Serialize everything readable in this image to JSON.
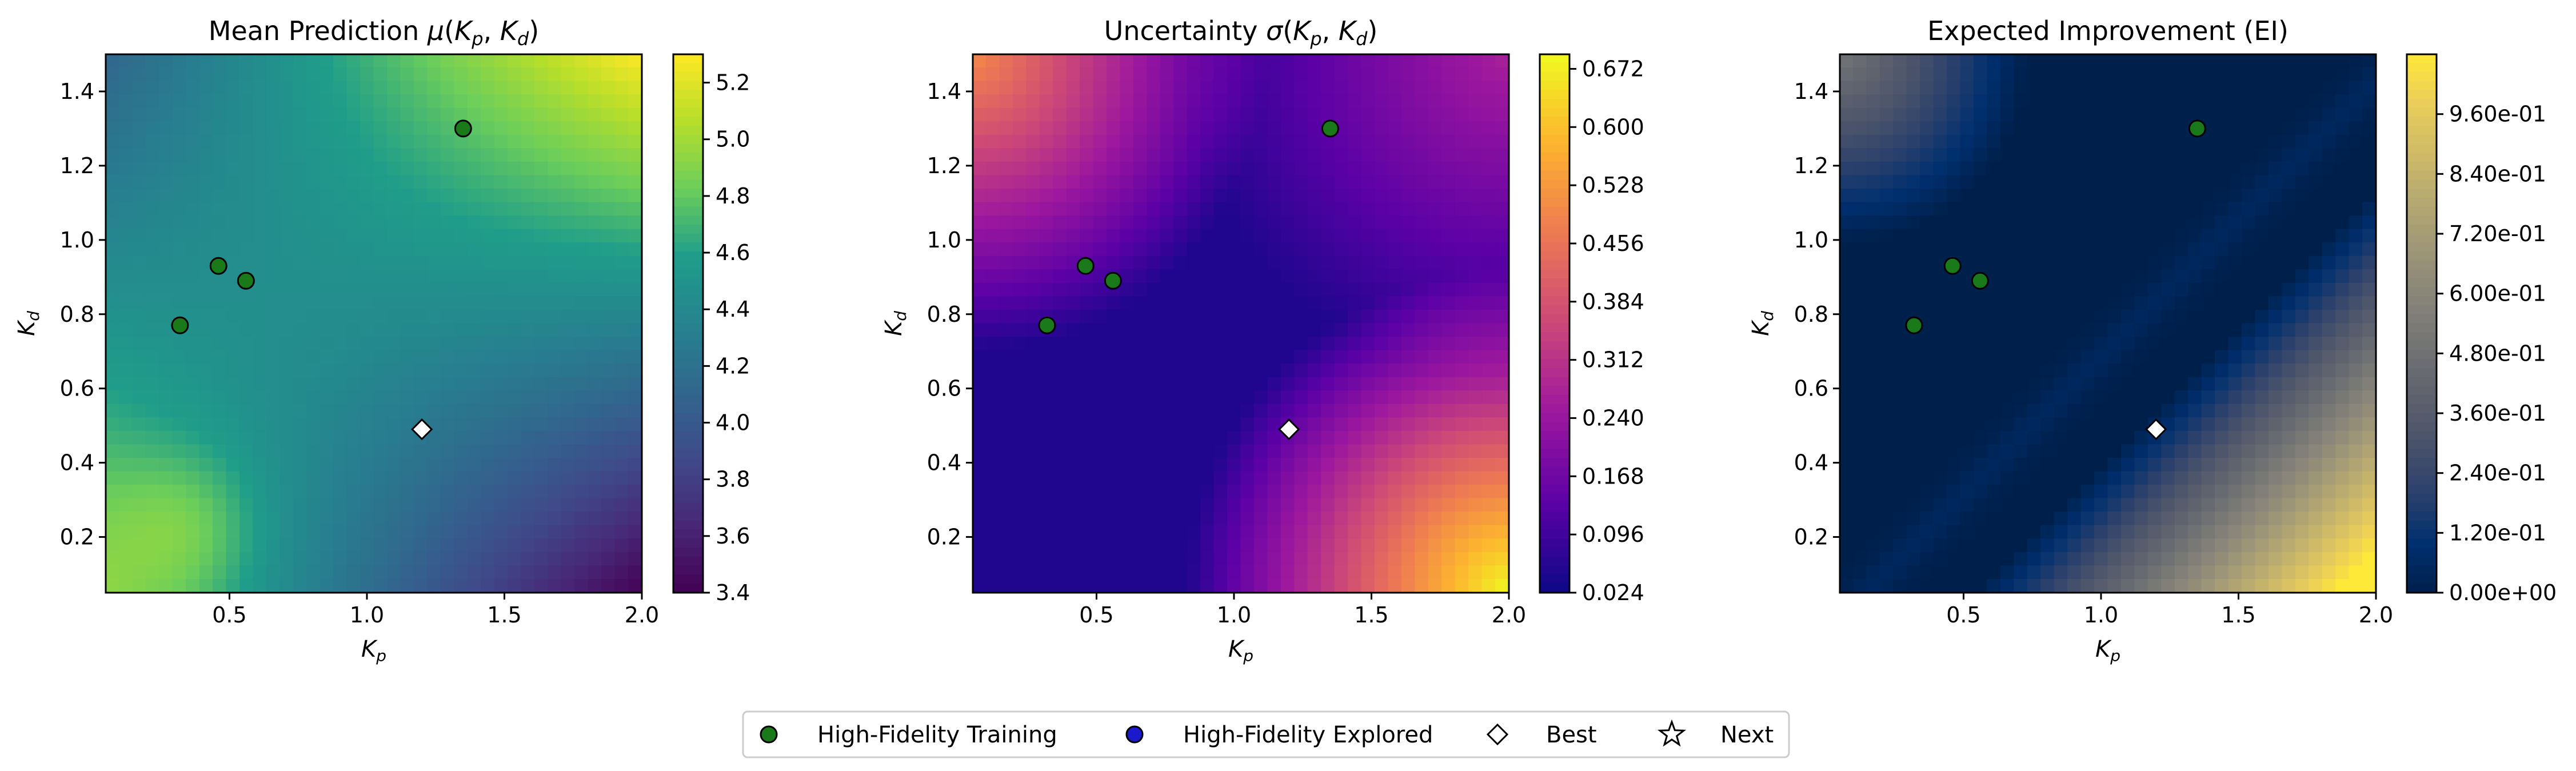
{
  "chart_data": [
    {
      "type": "heatmap",
      "title": "Mean Prediction μ(Kp, Kd)",
      "title_parts": [
        "Mean Prediction ",
        "μ",
        "(",
        "K",
        "p",
        ", ",
        "K",
        "d",
        ")"
      ],
      "xlabel": "Kp",
      "ylabel": "Kd",
      "xlim": [
        0.05,
        2.0
      ],
      "ylim": [
        0.05,
        1.5
      ],
      "x_ticks": [
        "0.5",
        "1.0",
        "1.5",
        "2.0"
      ],
      "x_tick_values": [
        0.5,
        1.0,
        1.5,
        2.0
      ],
      "y_ticks": [
        "0.2",
        "0.4",
        "0.6",
        "0.8",
        "1.0",
        "1.2",
        "1.4"
      ],
      "y_tick_values": [
        0.2,
        0.4,
        0.6,
        0.8,
        1.0,
        1.2,
        1.4
      ],
      "colormap": "viridis",
      "colorbar_range": [
        3.4,
        5.3
      ],
      "colorbar_ticks": [
        "3.4",
        "3.6",
        "3.8",
        "4.0",
        "4.2",
        "4.4",
        "4.6",
        "4.8",
        "5.0",
        "5.2"
      ],
      "colorbar_tick_values": [
        3.4,
        3.6,
        3.8,
        4.0,
        4.2,
        4.4,
        4.6,
        4.8,
        5.0,
        5.2
      ],
      "corner_values": {
        "top_left": 4.1,
        "top_right": 5.3,
        "bottom_left": 4.9,
        "bottom_right": 3.4
      }
    },
    {
      "type": "heatmap",
      "title": "Uncertainty σ(Kp, Kd)",
      "title_parts": [
        "Uncertainty ",
        "σ",
        "(",
        "K",
        "p",
        ", ",
        "K",
        "d",
        ")"
      ],
      "xlabel": "Kp",
      "ylabel": "Kd",
      "xlim": [
        0.05,
        2.0
      ],
      "ylim": [
        0.05,
        1.5
      ],
      "x_ticks": [
        "0.5",
        "1.0",
        "1.5",
        "2.0"
      ],
      "x_tick_values": [
        0.5,
        1.0,
        1.5,
        2.0
      ],
      "y_ticks": [
        "0.2",
        "0.4",
        "0.6",
        "0.8",
        "1.0",
        "1.2",
        "1.4"
      ],
      "y_tick_values": [
        0.2,
        0.4,
        0.6,
        0.8,
        1.0,
        1.2,
        1.4
      ],
      "colormap": "plasma",
      "colorbar_range": [
        0.024,
        0.69
      ],
      "colorbar_ticks": [
        "0.024",
        "0.096",
        "0.168",
        "0.240",
        "0.312",
        "0.384",
        "0.456",
        "0.528",
        "0.600",
        "0.672"
      ],
      "colorbar_tick_values": [
        0.024,
        0.096,
        0.168,
        0.24,
        0.312,
        0.384,
        0.456,
        0.528,
        0.6,
        0.672
      ],
      "corner_values": {
        "top_left": 0.5,
        "top_right": 0.28,
        "bottom_left": 0.05,
        "bottom_right": 0.69
      }
    },
    {
      "type": "heatmap",
      "title": "Expected Improvement (EI)",
      "title_parts": [
        "Expected Improvement (EI)"
      ],
      "xlabel": "Kp",
      "ylabel": "Kd",
      "xlim": [
        0.05,
        2.0
      ],
      "ylim": [
        0.05,
        1.5
      ],
      "x_ticks": [
        "0.5",
        "1.0",
        "1.5",
        "2.0"
      ],
      "x_tick_values": [
        0.5,
        1.0,
        1.5,
        2.0
      ],
      "y_ticks": [
        "0.2",
        "0.4",
        "0.6",
        "0.8",
        "1.0",
        "1.2",
        "1.4"
      ],
      "y_tick_values": [
        0.2,
        0.4,
        0.6,
        0.8,
        1.0,
        1.2,
        1.4
      ],
      "colormap": "cividis",
      "colorbar_range": [
        0.0,
        1.08
      ],
      "colorbar_ticks": [
        "0.00e+00",
        "1.20e-01",
        "2.40e-01",
        "3.60e-01",
        "4.80e-01",
        "6.00e-01",
        "7.20e-01",
        "8.40e-01",
        "9.60e-01"
      ],
      "colorbar_tick_values": [
        0.0,
        0.12,
        0.24,
        0.36,
        0.48,
        0.6,
        0.72,
        0.84,
        0.96
      ],
      "corner_values": {
        "top_left": 0.5,
        "top_right": 0.0,
        "bottom_left": 0.0,
        "bottom_right": 1.08
      }
    }
  ],
  "points": {
    "high_fidelity_training": [
      {
        "x": 0.32,
        "y": 0.77
      },
      {
        "x": 0.46,
        "y": 0.93
      },
      {
        "x": 0.56,
        "y": 0.89
      },
      {
        "x": 1.35,
        "y": 1.3
      }
    ],
    "best": {
      "x": 1.2,
      "y": 0.49
    }
  },
  "legend": {
    "items": [
      {
        "label": "High-Fidelity Training",
        "marker": "circle",
        "color": "#1a7a1a"
      },
      {
        "label": "High-Fidelity Explored",
        "marker": "circle",
        "color": "#1a1acc"
      },
      {
        "label": "Best",
        "marker": "diamond",
        "color": "#ffffff"
      },
      {
        "label": "Next",
        "marker": "star",
        "color": "#ffffff"
      }
    ]
  }
}
